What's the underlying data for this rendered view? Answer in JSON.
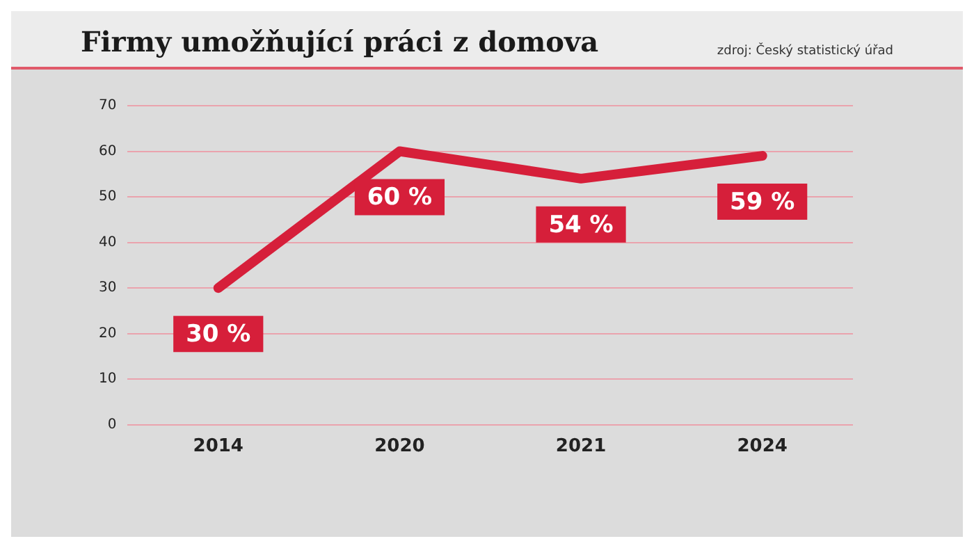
{
  "chart_data": {
    "type": "line",
    "title": "Firmy umožňující práci z domova",
    "annotations": [
      "zdroj: Český statistický úřad"
    ],
    "categories": [
      "2014",
      "2020",
      "2021",
      "2024"
    ],
    "series": [
      {
        "color": "#d61f3a",
        "values": [
          30,
          60,
          54,
          59
        ],
        "value_labels": [
          "30 %",
          "60 %",
          "54 %",
          "59 %"
        ]
      }
    ],
    "ylim": [
      0,
      70
    ],
    "yticks": [
      0,
      10,
      20,
      30,
      40,
      50,
      60,
      70
    ],
    "grid": "y",
    "legend": false,
    "marker": "none"
  }
}
